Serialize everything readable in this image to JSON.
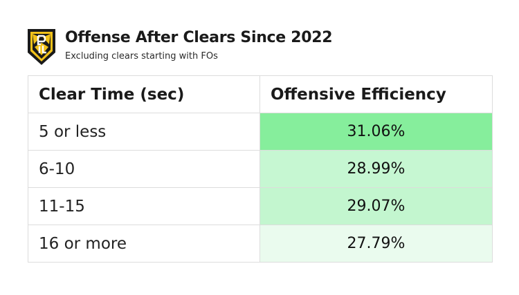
{
  "header": {
    "title": "Offense After Clears Since 2022",
    "subtitle": "Excluding clears starting with FOs",
    "logo_icon": "pll-logo-icon"
  },
  "table": {
    "columns": [
      "Clear Time (sec)",
      "Offensive Efficiency"
    ],
    "rows": [
      {
        "time": "5 or less",
        "efficiency": "31.06%",
        "color": "#86ee9c"
      },
      {
        "time": "6-10",
        "efficiency": "28.99%",
        "color": "#c6f7d2"
      },
      {
        "time": "11-15",
        "efficiency": "29.07%",
        "color": "#c3f6cf"
      },
      {
        "time": "16 or more",
        "efficiency": "27.79%",
        "color": "#eafbee"
      }
    ]
  },
  "chart_data": {
    "type": "table",
    "title": "Offense After Clears Since 2022",
    "subtitle": "Excluding clears starting with FOs",
    "columns": [
      "Clear Time (sec)",
      "Offensive Efficiency"
    ],
    "categories": [
      "5 or less",
      "6-10",
      "11-15",
      "16 or more"
    ],
    "values": [
      31.06,
      28.99,
      29.07,
      27.79
    ]
  }
}
